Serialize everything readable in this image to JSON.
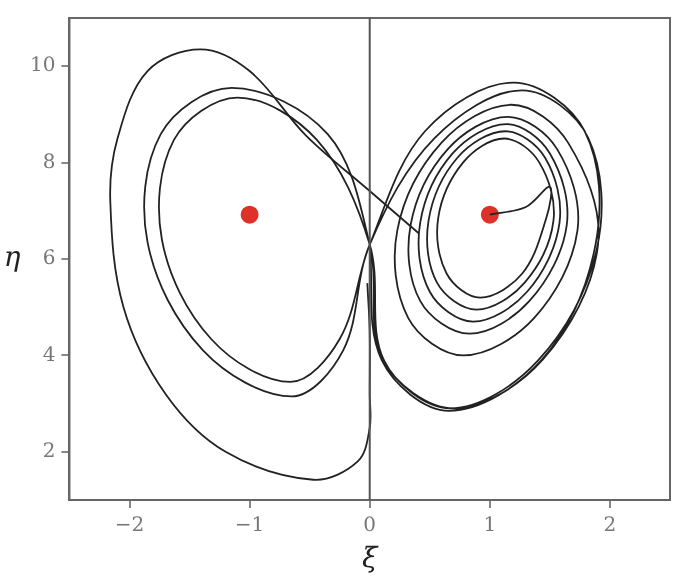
{
  "chart_data": {
    "type": "line",
    "xlabel": "ξ",
    "ylabel": "η",
    "xlim": [
      -2.5,
      2.5
    ],
    "ylim": [
      1,
      11
    ],
    "xticks": [
      -2,
      -1,
      0,
      1,
      2
    ],
    "yticks": [
      2,
      4,
      6,
      8,
      10
    ],
    "grid": false,
    "legend": false,
    "marker": "none",
    "line_style": "solid",
    "series": [
      {
        "color": "#222222",
        "x": [
          1.0,
          1.3,
          1.5,
          1.47,
          1.27,
          0.92,
          0.64,
          0.57,
          0.78,
          1.12,
          1.41,
          1.53,
          1.29,
          0.89,
          0.56,
          0.49,
          0.73,
          1.13,
          1.46,
          1.58,
          1.31,
          0.86,
          0.5,
          0.42,
          0.69,
          1.14,
          1.5,
          1.64,
          1.33,
          0.83,
          0.42,
          0.34,
          0.65,
          1.15,
          1.56,
          1.73,
          1.37,
          0.78,
          0.32,
          0.23,
          0.6,
          1.18,
          1.65,
          1.9,
          1.44,
          0.7,
          0.11,
          0.0,
          -0.35,
          -1.15,
          -1.74,
          -1.85,
          -1.39,
          -0.65,
          -0.22,
          0.0,
          0.54,
          1.27,
          1.82,
          1.89,
          1.4,
          0.67,
          0.12,
          0.0,
          -0.44,
          -1.1,
          -1.63,
          -1.73,
          -1.32,
          -0.66,
          -0.25,
          0.0,
          0.46,
          1.2,
          1.79,
          1.88,
          1.43,
          0.66,
          0.1,
          0.0
        ],
        "values": [
          6.92,
          7.08,
          7.5,
          6.85,
          5.7,
          5.2,
          5.7,
          6.85,
          8.01,
          8.5,
          8.01,
          6.8,
          5.51,
          4.95,
          5.51,
          6.8,
          8.1,
          8.65,
          8.1,
          6.75,
          5.32,
          4.7,
          5.32,
          6.75,
          8.19,
          8.8,
          8.19,
          6.7,
          5.13,
          4.45,
          5.13,
          6.7,
          8.28,
          8.95,
          8.28,
          6.6,
          4.78,
          4.0,
          4.78,
          6.6,
          8.42,
          9.2,
          8.42,
          6.28,
          3.91,
          2.9,
          3.91,
          6.3,
          8.59,
          9.55,
          8.59,
          6.35,
          4.11,
          3.15,
          4.11,
          6.3,
          8.51,
          9.5,
          8.51,
          6.2,
          3.89,
          2.9,
          3.89,
          6.3,
          8.47,
          9.35,
          8.47,
          6.4,
          4.34,
          3.45,
          4.34,
          6.3,
          8.65,
          9.66,
          8.65,
          6.3,
          3.9,
          2.85,
          3.9,
          6.3
        ]
      },
      {
        "color": "#222222",
        "x": [
          0.41,
          0.0,
          -0.53,
          -1.0,
          -1.41,
          -1.85,
          -2.1,
          -2.16,
          -2.05,
          -1.7,
          -1.2,
          -0.47,
          -0.1,
          0.0,
          0.0,
          0.0,
          -0.02
        ],
        "values": [
          6.53,
          7.41,
          8.56,
          9.9,
          10.35,
          9.9,
          8.5,
          7.2,
          5.0,
          3.2,
          2.0,
          1.42,
          1.8,
          2.5,
          3.2,
          4.5,
          5.5
        ]
      },
      {
        "type": "scatter",
        "marker": "circle",
        "color": "#e0302a",
        "x": [
          -1,
          1
        ],
        "values": [
          6.92,
          6.92
        ]
      }
    ],
    "ref_lines": [
      {
        "axis": "x",
        "value": 0,
        "color": "#555555"
      }
    ]
  }
}
